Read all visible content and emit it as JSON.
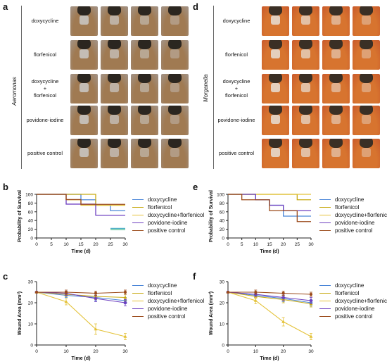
{
  "panels": {
    "a": {
      "letter": "a",
      "species": "Aeromonas"
    },
    "d": {
      "letter": "d",
      "species": "Morganella"
    },
    "b": {
      "letter": "b"
    },
    "e": {
      "letter": "e"
    },
    "c": {
      "letter": "c"
    },
    "f": {
      "letter": "f"
    }
  },
  "row_labels": [
    "doxycycline",
    "florfenicol",
    "doxycycline\n+\nflorfenicol",
    "povidone-iodine",
    "positive control"
  ],
  "legend": {
    "survival": [
      "doxycycline",
      "florfenicol",
      "doxycycline+florfenicol",
      "povidone-iodine",
      "positive control"
    ],
    "wound": [
      "doxycycline",
      "florfenicol",
      "doxycycline+florfenicol",
      "povidone-iodine",
      "positive control"
    ]
  },
  "photo_palette": {
    "aeromonas": {
      "bg": "#a29489",
      "shell": "#a07a52",
      "head": "#2b2620",
      "wound": "#c8c4c0"
    },
    "morganella": {
      "bg": "#c95a2c",
      "shell": "#d7742f",
      "head": "#3a2f25",
      "wound": "#e6d9cd"
    }
  },
  "chart_data": [
    {
      "panel": "b",
      "type": "line",
      "step": true,
      "xlabel": "Time (d)",
      "ylabel": "Probability of Survival",
      "xlim": [
        0,
        30
      ],
      "ylim": [
        0,
        100
      ],
      "xticks": [
        0,
        5,
        10,
        15,
        20,
        25,
        30
      ],
      "yticks": [
        0,
        20,
        40,
        60,
        80,
        100
      ],
      "series": [
        {
          "name": "doxycycline",
          "color": "#4a86d8",
          "x": [
            0,
            15,
            20,
            25,
            30
          ],
          "y": [
            100,
            87.5,
            75,
            62.5,
            62.5
          ]
        },
        {
          "name": "florfenicol",
          "color": "#c8aa12",
          "x": [
            0,
            20,
            30
          ],
          "y": [
            100,
            75,
            75
          ]
        },
        {
          "name": "doxycycline+florfenicol",
          "color": "#e4c238",
          "x": [
            0,
            10,
            15,
            25,
            30
          ],
          "y": [
            100,
            87.5,
            75,
            75,
            75
          ]
        },
        {
          "name": "povidone-iodine",
          "color": "#6d3fc0",
          "x": [
            0,
            10,
            20,
            30
          ],
          "y": [
            100,
            77.5,
            52,
            52
          ]
        },
        {
          "name": "positive control",
          "color": "#9b4a1a",
          "x": [
            0,
            10,
            15,
            30
          ],
          "y": [
            100,
            88,
            77,
            77
          ]
        }
      ],
      "extra_marks": [
        {
          "color": "#4fb0c6",
          "x": [
            25,
            30
          ],
          "y": [
            22,
            22
          ]
        },
        {
          "color": "#3bb58c",
          "x": [
            25,
            30
          ],
          "y": [
            19,
            19
          ]
        }
      ]
    },
    {
      "panel": "e",
      "type": "line",
      "step": true,
      "xlabel": "Time (d)",
      "ylabel": "Probability of Survival",
      "xlim": [
        0,
        30
      ],
      "ylim": [
        0,
        100
      ],
      "xticks": [
        0,
        5,
        10,
        15,
        20,
        25,
        30
      ],
      "yticks": [
        0,
        20,
        40,
        60,
        80,
        100
      ],
      "series": [
        {
          "name": "doxycycline",
          "color": "#4a86d8",
          "x": [
            0,
            10,
            15,
            20,
            30
          ],
          "y": [
            100,
            87.5,
            75,
            50,
            50
          ]
        },
        {
          "name": "florfenicol",
          "color": "#c8aa12",
          "x": [
            0,
            25,
            30
          ],
          "y": [
            100,
            87.5,
            87.5
          ]
        },
        {
          "name": "doxycycline+florfenicol",
          "color": "#e4c238",
          "x": [
            0,
            30
          ],
          "y": [
            100,
            100
          ]
        },
        {
          "name": "povidone-iodine",
          "color": "#6d3fc0",
          "x": [
            0,
            10,
            15,
            20,
            30
          ],
          "y": [
            100,
            87.5,
            75,
            62.5,
            62.5
          ]
        },
        {
          "name": "positive control",
          "color": "#9b4a1a",
          "x": [
            0,
            5,
            15,
            25,
            30
          ],
          "y": [
            100,
            87.5,
            62.5,
            37.5,
            37.5
          ]
        }
      ]
    },
    {
      "panel": "c",
      "type": "line",
      "xlabel": "Time (d)",
      "ylabel": "Wound Area (mm²)",
      "xlim": [
        0,
        30
      ],
      "ylim": [
        0,
        30
      ],
      "xticks": [
        0,
        10,
        20,
        30
      ],
      "yticks": [
        0,
        10,
        20,
        30
      ],
      "series": [
        {
          "name": "doxycycline",
          "color": "#4a86d8",
          "marker": "circle",
          "x": [
            0,
            10,
            20,
            30
          ],
          "y": [
            25,
            23.5,
            22.5,
            21
          ],
          "err": [
            0,
            1,
            1.5,
            1.5
          ]
        },
        {
          "name": "florfenicol",
          "color": "#c8aa12",
          "marker": "tri",
          "x": [
            0,
            10,
            20,
            30
          ],
          "y": [
            25,
            24,
            23,
            22.5
          ],
          "err": [
            0,
            1,
            1.5,
            1.5
          ]
        },
        {
          "name": "doxycycline+florfenicol",
          "color": "#e4c238",
          "marker": "tri",
          "x": [
            0,
            10,
            20,
            30
          ],
          "y": [
            25,
            20.5,
            7.5,
            4
          ],
          "err": [
            0,
            1.5,
            2.5,
            1.5
          ]
        },
        {
          "name": "povidone-iodine",
          "color": "#6d3fc0",
          "marker": "star",
          "x": [
            0,
            10,
            20,
            30
          ],
          "y": [
            25,
            24.5,
            22,
            20
          ],
          "err": [
            0,
            1,
            1.5,
            1.5
          ]
        },
        {
          "name": "positive control",
          "color": "#9b4a1a",
          "marker": "dot",
          "x": [
            0,
            10,
            20,
            30
          ],
          "y": [
            25,
            25,
            24.5,
            25
          ],
          "err": [
            0,
            1,
            1,
            1
          ]
        }
      ]
    },
    {
      "panel": "f",
      "type": "line",
      "xlabel": "Time (d)",
      "ylabel": "Wound Area (mm²)",
      "xlim": [
        0,
        30
      ],
      "ylim": [
        0,
        30
      ],
      "xticks": [
        0,
        10,
        20,
        30
      ],
      "yticks": [
        0,
        10,
        20,
        30
      ],
      "series": [
        {
          "name": "doxycycline",
          "color": "#4a86d8",
          "marker": "circle",
          "x": [
            0,
            10,
            20,
            30
          ],
          "y": [
            25,
            23.5,
            22,
            20
          ],
          "err": [
            0,
            1,
            1.5,
            1.5
          ]
        },
        {
          "name": "florfenicol",
          "color": "#c8aa12",
          "marker": "tri",
          "x": [
            0,
            10,
            20,
            30
          ],
          "y": [
            25,
            23,
            21.5,
            19.5
          ],
          "err": [
            0,
            1,
            1.5,
            1.5
          ]
        },
        {
          "name": "doxycycline+florfenicol",
          "color": "#e4c238",
          "marker": "tri",
          "x": [
            0,
            10,
            20,
            30
          ],
          "y": [
            25,
            21,
            11,
            4
          ],
          "err": [
            0,
            1.5,
            2,
            1.5
          ]
        },
        {
          "name": "povidone-iodine",
          "color": "#6d3fc0",
          "marker": "star",
          "x": [
            0,
            10,
            20,
            30
          ],
          "y": [
            25,
            24,
            22.5,
            21
          ],
          "err": [
            0,
            1,
            1.5,
            1.5
          ]
        },
        {
          "name": "positive control",
          "color": "#9b4a1a",
          "marker": "dot",
          "x": [
            0,
            10,
            20,
            30
          ],
          "y": [
            25,
            25,
            24.5,
            24
          ],
          "err": [
            0,
            1,
            1,
            1
          ]
        }
      ]
    }
  ]
}
